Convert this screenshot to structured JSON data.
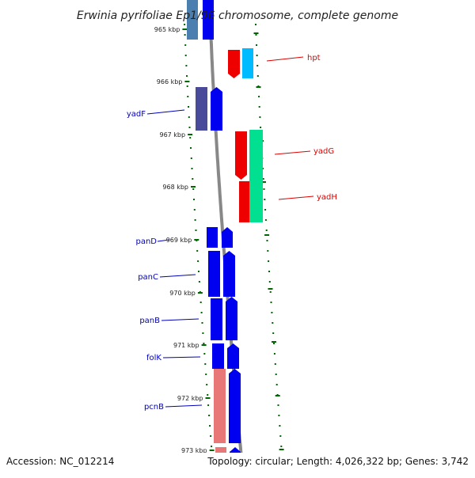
{
  "title": "Erwinia pyrifoliae Ep1/96 chromosome, complete genome",
  "footer": {
    "accession": "Accession: NC_012214",
    "summary": "Topology: circular; Length: 4,026,322 bp; Genes: 3,742"
  },
  "ticks": [
    "965 kbp",
    "966 kbp",
    "967 kbp",
    "968 kbp",
    "969 kbp",
    "970 kbp",
    "971 kbp",
    "972 kbp",
    "973 kbp"
  ],
  "colors": {
    "minus_strand_label": "#0000bb",
    "plus_strand_label": "#dd0000",
    "backbone": "#888888",
    "tick": "#006600",
    "blue": "#0000f0",
    "slate": "#4a4a9a",
    "steelblue": "#4a7fb0",
    "red": "#ee0000",
    "cyan": "#00bbff",
    "teal": "#00e090",
    "pink": "#e87878"
  },
  "gene_labels": [
    {
      "name": "hpt",
      "strand": "plus"
    },
    {
      "name": "yadF",
      "strand": "minus"
    },
    {
      "name": "yadG",
      "strand": "plus"
    },
    {
      "name": "yadH",
      "strand": "plus"
    },
    {
      "name": "panD",
      "strand": "minus"
    },
    {
      "name": "panC",
      "strand": "minus"
    },
    {
      "name": "panB",
      "strand": "minus"
    },
    {
      "name": "folK",
      "strand": "minus"
    },
    {
      "name": "pcnB",
      "strand": "minus"
    }
  ]
}
